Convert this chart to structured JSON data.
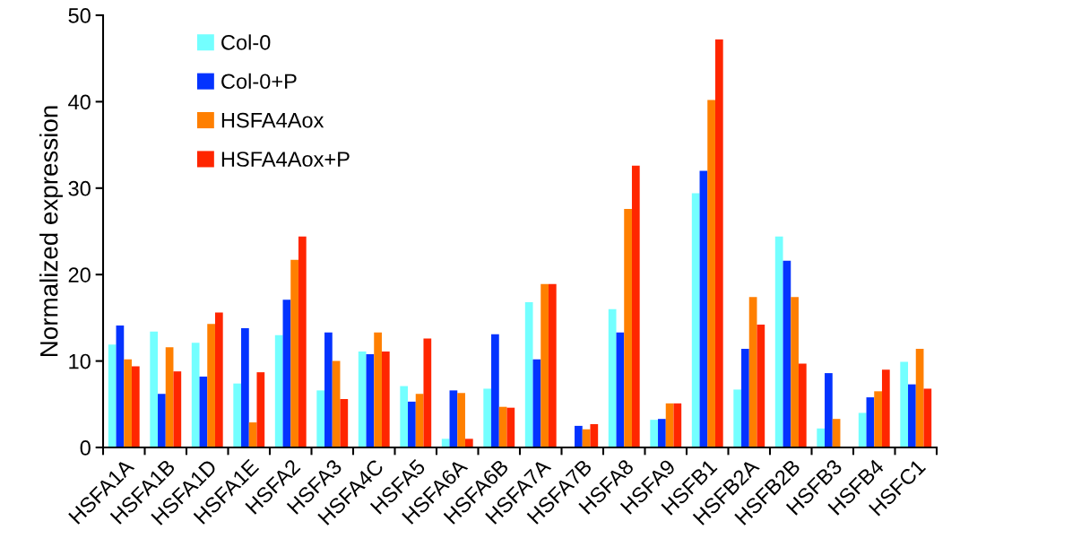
{
  "chart_data": {
    "type": "bar",
    "ylabel": "Normalized expression",
    "categories": [
      "HSFA1A",
      "HSFA1B",
      "HSFA1D",
      "HSFA1E",
      "HSFA2",
      "HSFA3",
      "HSFA4C",
      "HSFA5",
      "HSFA6A",
      "HSFA6B",
      "HSFA7A",
      "HSFA7B",
      "HSFA8",
      "HSFA9",
      "HSFB1",
      "HSFB2A",
      "HSFB2B",
      "HSFB3",
      "HSFB4",
      "HSFC1"
    ],
    "series": [
      {
        "name": "Col-0",
        "color": "#73ffff",
        "values": [
          11.9,
          13.4,
          12.1,
          7.4,
          13.0,
          6.6,
          11.1,
          7.1,
          1.0,
          6.8,
          16.8,
          null,
          16.0,
          3.2,
          29.4,
          6.7,
          24.4,
          2.2,
          4.0,
          9.9
        ]
      },
      {
        "name": "Col-0+P",
        "color": "#0433ff",
        "values": [
          14.1,
          6.2,
          8.2,
          13.8,
          17.1,
          13.3,
          10.8,
          5.3,
          6.6,
          13.1,
          10.2,
          2.5,
          13.3,
          3.3,
          32.0,
          11.4,
          21.6,
          8.6,
          5.8,
          7.3
        ]
      },
      {
        "name": "HSFA4Aox",
        "color": "#ff7f00",
        "values": [
          10.2,
          11.6,
          14.3,
          2.9,
          21.7,
          10.0,
          13.3,
          6.2,
          6.3,
          4.7,
          18.9,
          2.1,
          27.6,
          5.1,
          40.2,
          17.4,
          17.4,
          3.3,
          6.5,
          11.4
        ]
      },
      {
        "name": "HSFA4Aox+P",
        "color": "#ff2600",
        "values": [
          9.4,
          8.8,
          15.6,
          8.7,
          24.4,
          5.6,
          11.1,
          12.6,
          1.0,
          4.6,
          18.9,
          2.7,
          32.6,
          5.1,
          47.2,
          14.2,
          9.7,
          null,
          9.0,
          6.8
        ]
      }
    ],
    "ylim": [
      0,
      50
    ],
    "yticks": [
      0,
      10,
      20,
      30,
      40,
      50
    ],
    "grid": false,
    "legend": "top left"
  }
}
